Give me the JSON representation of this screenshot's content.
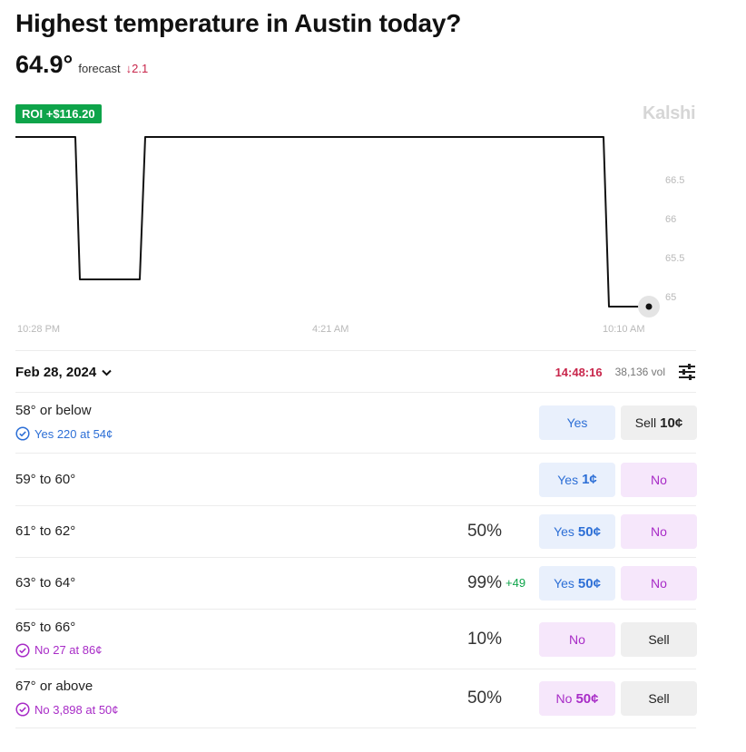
{
  "header": {
    "title": "Highest temperature in Austin today?",
    "price": "64.9°",
    "forecast_label": "forecast",
    "delta": "↓2.1"
  },
  "roi_badge": "ROI +$116.20",
  "brand": "Kalshi",
  "chart": {
    "y_ticks": [
      "66.5",
      "66",
      "65.5",
      "65"
    ],
    "x_ticks": [
      "10:28 PM",
      "4:21 AM",
      "10:10 AM"
    ],
    "line_color": "#111111"
  },
  "toolbar": {
    "date": "Feb 28, 2024",
    "timer": "14:48:16",
    "volume": "38,136 vol"
  },
  "markets": [
    {
      "label": "58° or below",
      "position": "Yes 220 at 54¢",
      "position_side": "yes",
      "percent": "",
      "change": "",
      "btn1": {
        "text": "Yes",
        "price": "",
        "style": "yes"
      },
      "btn2": {
        "text": "Sell",
        "price": "10¢",
        "style": "sell"
      }
    },
    {
      "label": "59° to 60°",
      "position": "",
      "position_side": "",
      "percent": "",
      "change": "",
      "btn1": {
        "text": "Yes",
        "price": "1¢",
        "style": "yes"
      },
      "btn2": {
        "text": "No",
        "price": "",
        "style": "no"
      }
    },
    {
      "label": "61° to 62°",
      "position": "",
      "position_side": "",
      "percent": "50%",
      "change": "",
      "btn1": {
        "text": "Yes",
        "price": "50¢",
        "style": "yes"
      },
      "btn2": {
        "text": "No",
        "price": "",
        "style": "no"
      }
    },
    {
      "label": "63° to 64°",
      "position": "",
      "position_side": "",
      "percent": "99%",
      "change": "+49",
      "btn1": {
        "text": "Yes",
        "price": "50¢",
        "style": "yes"
      },
      "btn2": {
        "text": "No",
        "price": "",
        "style": "no"
      }
    },
    {
      "label": "65° to 66°",
      "position": "No 27 at 86¢",
      "position_side": "no",
      "percent": "10%",
      "change": "",
      "btn1": {
        "text": "No",
        "price": "",
        "style": "no"
      },
      "btn2": {
        "text": "Sell",
        "price": "",
        "style": "sell"
      }
    },
    {
      "label": "67° or above",
      "position": "No 3,898 at 50¢",
      "position_side": "no",
      "percent": "50%",
      "change": "",
      "btn1": {
        "text": "No",
        "price": "50¢",
        "style": "no"
      },
      "btn2": {
        "text": "Sell",
        "price": "",
        "style": "sell"
      }
    }
  ]
}
